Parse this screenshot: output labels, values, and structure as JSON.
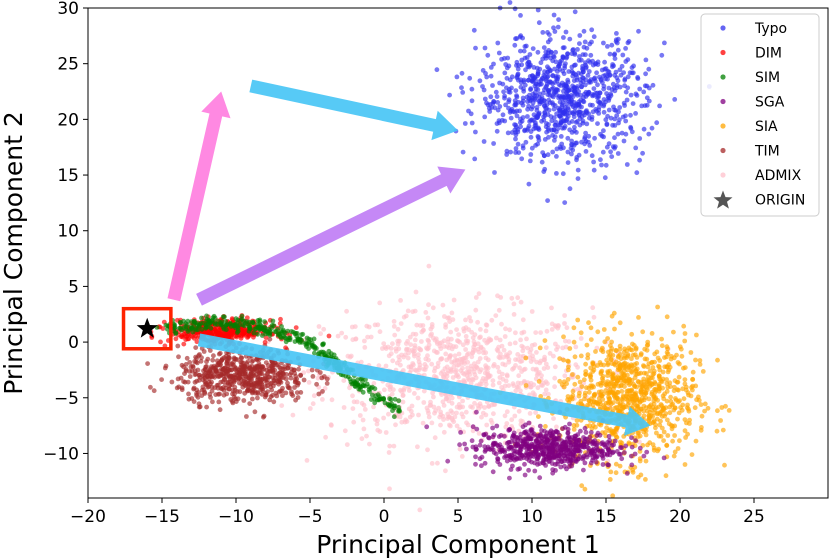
{
  "chart_data": {
    "type": "scatter",
    "title": "",
    "xlabel": "Principal Component 1",
    "ylabel": "Principal Component 2",
    "xlim": [
      -20,
      30
    ],
    "ylim": [
      -14,
      30
    ],
    "xticks": [
      -20,
      -15,
      -10,
      -5,
      0,
      5,
      10,
      15,
      20,
      25
    ],
    "yticks": [
      -10,
      -5,
      0,
      5,
      10,
      15,
      20,
      25,
      30
    ],
    "xtick_labels": [
      "−20",
      "−15",
      "−10",
      "−5",
      "0",
      "5",
      "10",
      "15",
      "20",
      "25"
    ],
    "ytick_labels": [
      "−10",
      "−5",
      "0",
      "5",
      "10",
      "15",
      "20",
      "25",
      "30"
    ],
    "grid": false,
    "legend_position": "top-right",
    "series": [
      {
        "name": "Typo",
        "color": "#3030ee",
        "cluster": {
          "center": [
            12,
            22
          ],
          "spread": [
            2.8,
            2.8
          ],
          "count": 900
        }
      },
      {
        "name": "DIM",
        "color": "#ff0000",
        "cluster": {
          "center": [
            -11,
            1
          ],
          "spread": [
            1.7,
            0.5
          ],
          "count": 400
        }
      },
      {
        "name": "SIM",
        "color": "#008000",
        "path": [
          [
            -15,
            1
          ],
          [
            -12,
            1.8
          ],
          [
            -9,
            1.5
          ],
          [
            -6,
            0.5
          ],
          [
            -3.5,
            -1.5
          ],
          [
            -1.5,
            -4
          ],
          [
            1,
            -6
          ]
        ],
        "count": 360
      },
      {
        "name": "SGA",
        "color": "#800080",
        "cluster": {
          "center": [
            11,
            -9.5
          ],
          "spread": [
            2.4,
            0.9
          ],
          "count": 600
        }
      },
      {
        "name": "SIA",
        "color": "#ffa500",
        "cluster": {
          "center": [
            16.5,
            -5
          ],
          "spread": [
            2.3,
            2.8
          ],
          "count": 900
        }
      },
      {
        "name": "TIM",
        "color": "#a52a2a",
        "cluster": {
          "center": [
            -9.5,
            -3
          ],
          "spread": [
            2.2,
            1.2
          ],
          "count": 600
        }
      },
      {
        "name": "ADMIX",
        "color": "#ffc0cb",
        "cluster": {
          "center": [
            5,
            -3
          ],
          "spread": [
            4.5,
            3.0
          ],
          "count": 900
        }
      },
      {
        "name": "ORIGIN",
        "color": "#000000",
        "points": [
          [
            -16,
            1.2
          ]
        ]
      }
    ],
    "annotations": [
      {
        "type": "box",
        "color": "#ff2200",
        "around": [
          -16,
          1.2
        ],
        "half_size": [
          1.6,
          1.8
        ]
      },
      {
        "type": "arrow",
        "color": "#ff7fe0",
        "from": [
          -14.2,
          3.8
        ],
        "to": [
          -11,
          22.5
        ]
      },
      {
        "type": "arrow",
        "color": "#49c6f5",
        "from": [
          -9,
          23
        ],
        "to": [
          5,
          19
        ]
      },
      {
        "type": "arrow",
        "color": "#c07ef5",
        "from": [
          -12.5,
          3.8
        ],
        "to": [
          5.5,
          15.5
        ]
      },
      {
        "type": "arrow",
        "color": "#49c6f5",
        "from": [
          -12.5,
          0.2
        ],
        "to": [
          18,
          -7.5
        ]
      }
    ]
  }
}
